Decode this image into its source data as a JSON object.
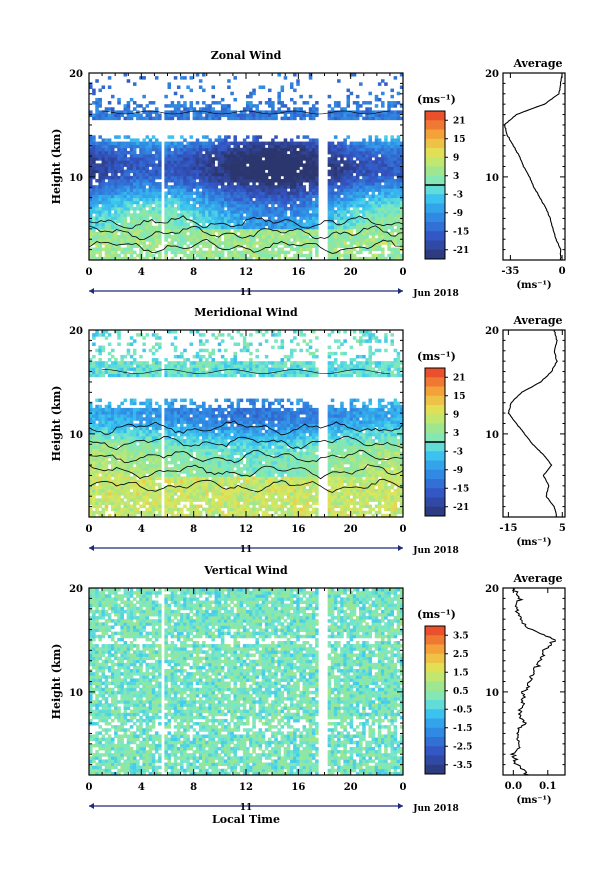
{
  "figure": {
    "date_label": "Jun 2018",
    "day_label": "11",
    "xlabel": "Local Time",
    "ylabel": "Height (km)",
    "unit_label": "(ms⁻¹)",
    "average_title": "Average",
    "average_xlabel": "(ms⁻¹)"
  },
  "chart_data": [
    {
      "type": "heatmap",
      "title": "Zonal Wind",
      "xlabel": "Local Time",
      "ylabel": "Height (km)",
      "x_ticks": [
        "0",
        "4",
        "8",
        "12",
        "16",
        "20",
        "0"
      ],
      "y_ticks": [
        "10",
        "20"
      ],
      "xlim": [
        0,
        24
      ],
      "ylim": [
        2,
        20
      ],
      "colorbar": {
        "label": "(ms⁻¹)",
        "ticks": [
          "21",
          "15",
          "9",
          "3",
          "-3",
          "-9",
          "-15",
          "-21"
        ],
        "range": [
          -24,
          24
        ],
        "zero_line": 0
      },
      "data_gaps_hours": [
        [
          5.5,
          5.8
        ],
        [
          17.6,
          18.3
        ]
      ],
      "average_profile": {
        "title": "Average",
        "xlabel": "(ms⁻¹)",
        "x_ticks": [
          "-35",
          "0"
        ],
        "xlim": [
          -40,
          2
        ],
        "height_km": [
          2,
          3,
          4,
          5,
          6,
          7,
          8,
          9,
          10,
          11,
          12,
          13,
          14,
          15,
          16,
          17,
          18,
          19,
          20
        ],
        "values": [
          -1,
          -1,
          -4,
          -6,
          -8,
          -11,
          -15,
          -19,
          -22,
          -26,
          -29,
          -33,
          -37,
          -39,
          -31,
          -12,
          -2,
          -1,
          0
        ]
      }
    },
    {
      "type": "heatmap",
      "title": "Meridional Wind",
      "xlabel": "Local Time",
      "ylabel": "Height (km)",
      "x_ticks": [
        "0",
        "4",
        "8",
        "12",
        "16",
        "20",
        "0"
      ],
      "y_ticks": [
        "10",
        "20"
      ],
      "xlim": [
        0,
        24
      ],
      "ylim": [
        2,
        20
      ],
      "colorbar": {
        "label": "(ms⁻¹)",
        "ticks": [
          "21",
          "15",
          "9",
          "3",
          "-3",
          "-9",
          "-15",
          "-21"
        ],
        "range": [
          -24,
          24
        ],
        "zero_line": 0
      },
      "data_gaps_hours": [
        [
          5.5,
          5.8
        ],
        [
          17.6,
          18.3
        ]
      ],
      "average_profile": {
        "title": "Average",
        "xlabel": "(ms⁻¹)",
        "x_ticks": [
          "-15",
          "5"
        ],
        "xlim": [
          -17,
          6
        ],
        "height_km": [
          2,
          3,
          4,
          5,
          6,
          7,
          8,
          9,
          10,
          11,
          12,
          13,
          14,
          15,
          16,
          17,
          18,
          19,
          20
        ],
        "values": [
          3,
          2,
          -1,
          0,
          -2,
          1,
          -2,
          -6,
          -9,
          -12,
          -15,
          -14,
          -10,
          -3,
          1,
          3,
          2,
          3,
          2
        ]
      }
    },
    {
      "type": "heatmap",
      "title": "Vertical Wind",
      "xlabel": "Local Time",
      "ylabel": "Height (km)",
      "x_ticks": [
        "0",
        "4",
        "8",
        "12",
        "16",
        "20",
        "0"
      ],
      "y_ticks": [
        "10",
        "20"
      ],
      "xlim": [
        0,
        24
      ],
      "ylim": [
        2,
        20
      ],
      "colorbar": {
        "label": "(ms⁻¹)",
        "ticks": [
          "3.5",
          "2.5",
          "1.5",
          "0.5",
          "-0.5",
          "-1.5",
          "-2.5",
          "-3.5"
        ],
        "range": [
          -4,
          4
        ]
      },
      "data_gaps_hours": [
        [
          5.5,
          5.8
        ],
        [
          17.6,
          18.3
        ]
      ],
      "average_profile": {
        "title": "Average",
        "xlabel": "(ms⁻¹)",
        "x_ticks": [
          "0.0",
          "0.1"
        ],
        "xlim": [
          -0.03,
          0.15
        ],
        "height_km": [
          2,
          3,
          4,
          5,
          6,
          7,
          8,
          9,
          10,
          11,
          12,
          13,
          14,
          15,
          16,
          17,
          18,
          19,
          20
        ],
        "values": [
          0.04,
          0.01,
          0.0,
          0.02,
          0.01,
          0.03,
          0.02,
          0.03,
          0.03,
          0.05,
          0.06,
          0.08,
          0.09,
          0.12,
          0.05,
          0.02,
          0.01,
          0.02,
          0.0
        ]
      }
    }
  ]
}
